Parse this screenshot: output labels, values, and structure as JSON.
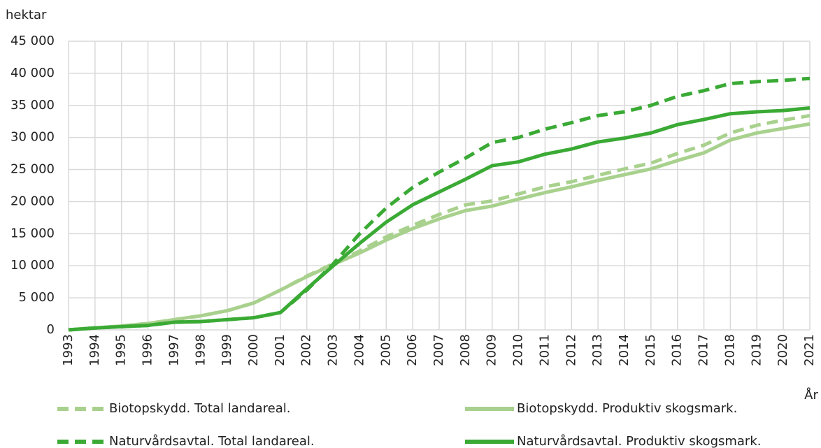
{
  "chart_data": {
    "type": "line",
    "y_label": "hektar",
    "x_label": "År",
    "categories": [
      "1993",
      "1994",
      "1995",
      "1996",
      "1997",
      "1998",
      "1999",
      "2000",
      "2001",
      "2002",
      "2003",
      "2004",
      "2005",
      "2006",
      "2007",
      "2008",
      "2009",
      "2010",
      "2011",
      "2012",
      "2013",
      "2014",
      "2015",
      "2016",
      "2017",
      "2018",
      "2019",
      "2020",
      "2021"
    ],
    "ylim": [
      0,
      45000
    ],
    "yticks": [
      0,
      {
        "value": 5000,
        "label": "5 000"
      },
      {
        "value": 10000,
        "label": "10 000"
      },
      {
        "value": 15000,
        "label": "15 000"
      },
      {
        "value": 20000,
        "label": "20 000"
      },
      {
        "value": 25000,
        "label": "25 000"
      },
      {
        "value": 30000,
        "label": "30 000"
      },
      {
        "value": 35000,
        "label": "35 000"
      },
      {
        "value": 40000,
        "label": "40 000"
      },
      {
        "value": 45000,
        "label": "45 000"
      }
    ],
    "grid": true,
    "series": [
      {
        "name": "Biotopskydd. Total landareal.",
        "color": "#a9d18e",
        "dashed": true,
        "values": [
          0,
          300,
          600,
          1000,
          1600,
          2200,
          3000,
          4200,
          6200,
          8400,
          10300,
          12300,
          14500,
          16300,
          18000,
          19500,
          20100,
          21200,
          22300,
          23100,
          24100,
          25100,
          26000,
          27500,
          28800,
          30700,
          31900,
          32700,
          33400
        ]
      },
      {
        "name": "Biotopskydd. Produktiv skogsmark.",
        "color": "#a9d18e",
        "dashed": false,
        "values": [
          0,
          300,
          600,
          1000,
          1600,
          2200,
          3000,
          4200,
          6200,
          8300,
          10200,
          12000,
          14000,
          15800,
          17300,
          18600,
          19300,
          20400,
          21400,
          22300,
          23300,
          24200,
          25100,
          26400,
          27600,
          29600,
          30700,
          31400,
          32100
        ]
      },
      {
        "name": "Naturvårdsavtal. Total landareal.",
        "color": "#3aaa35",
        "dashed": true,
        "values": [
          0,
          300,
          500,
          700,
          1200,
          1300,
          1600,
          1900,
          2700,
          6200,
          10300,
          15000,
          19000,
          22200,
          24600,
          26800,
          29200,
          30000,
          31300,
          32300,
          33400,
          34000,
          35000,
          36400,
          37300,
          38400,
          38700,
          38900,
          39200
        ]
      },
      {
        "name": "Naturvårdsavtal. Produktiv skogsmark.",
        "color": "#3aaa35",
        "dashed": false,
        "values": [
          0,
          300,
          500,
          700,
          1200,
          1300,
          1600,
          1900,
          2700,
          6400,
          10000,
          13500,
          16800,
          19500,
          21500,
          23500,
          25600,
          26200,
          27400,
          28200,
          29300,
          29900,
          30700,
          32000,
          32800,
          33700,
          34000,
          34200,
          34600
        ]
      }
    ]
  }
}
